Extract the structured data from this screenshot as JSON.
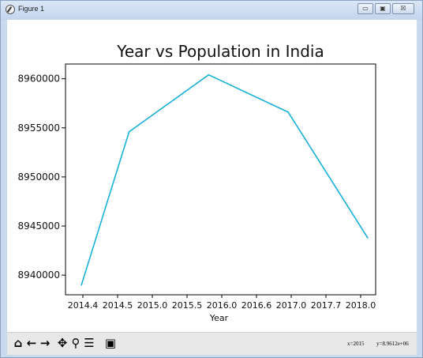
{
  "window": {
    "title": "Figure 1",
    "icon": "matplotlib-icon",
    "controls": {
      "minimize": "▭",
      "maximize": "▣",
      "close": "☒"
    }
  },
  "toolbar": {
    "tools": [
      {
        "name": "home-icon",
        "glyph": "⌂"
      },
      {
        "name": "back-arrow-icon",
        "glyph": "←"
      },
      {
        "name": "forward-arrow-icon",
        "glyph": "→"
      },
      {
        "name": "pan-icon",
        "glyph": "✥"
      },
      {
        "name": "zoom-icon",
        "glyph": "⚲"
      },
      {
        "name": "configure-subplots-icon",
        "glyph": "☰"
      },
      {
        "name": "save-icon",
        "glyph": "▣"
      }
    ],
    "x_readout": "x=2015",
    "y_readout": "y=8.9612e+06"
  },
  "chart_data": {
    "type": "line",
    "title": "Year vs Population in India",
    "xlabel": "Year",
    "ylabel": "",
    "x": [
      2014.4,
      2015.0,
      2016.0,
      2017.0,
      2018.0
    ],
    "y": [
      8939000,
      8954600,
      8960400,
      8956600,
      8943800
    ],
    "x_tick_labels": [
      "2014.4",
      "2014.5",
      "2015.0",
      "2015.5",
      "2016.0",
      "2016.6",
      "2017.0",
      "2017.7",
      "2018.0"
    ],
    "y_ticks": [
      8940000,
      8945000,
      8950000,
      8955000,
      8960000
    ],
    "y_tick_labels": [
      "8940000",
      "8945000",
      "8950000",
      "8955000",
      "8960000"
    ],
    "ylim": [
      8938000,
      8961500
    ],
    "line_color": "#17b0d6",
    "grid": false,
    "legend": "none"
  }
}
